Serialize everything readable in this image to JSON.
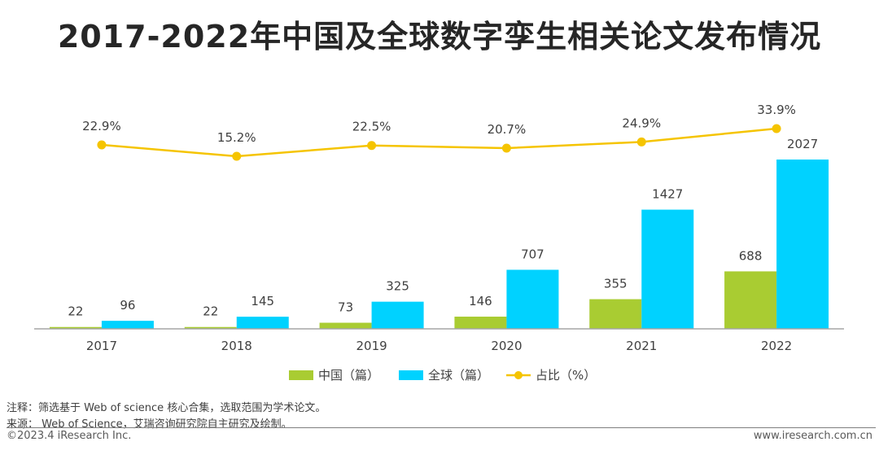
{
  "title": "2017-2022年中国及全球数字孪生相关论文发布情况",
  "chart_data": {
    "type": "bar",
    "categories": [
      "2017",
      "2018",
      "2019",
      "2020",
      "2021",
      "2022"
    ],
    "series": [
      {
        "name": "中国（篇）",
        "type": "bar",
        "values": [
          22,
          22,
          73,
          146,
          355,
          688
        ],
        "color": "#a9cc32"
      },
      {
        "name": "全球（篇）",
        "type": "bar",
        "values": [
          96,
          145,
          325,
          707,
          1427,
          2027
        ],
        "color": "#00d2ff"
      },
      {
        "name": "占比（%）",
        "type": "line",
        "values": [
          22.9,
          15.2,
          22.5,
          20.7,
          24.9,
          33.9
        ],
        "labels": [
          "22.9%",
          "15.2%",
          "22.5%",
          "20.7%",
          "24.9%",
          "33.9%"
        ],
        "color": "#f5c400"
      }
    ],
    "bar_ylim": [
      0,
      2027
    ],
    "line_ylim": [
      10,
      40
    ],
    "legend_position": "bottom",
    "grid": false
  },
  "notes": {
    "note": "注释：筛选基于 Web of science 核心合集，选取范围为学术论文。",
    "source": "来源：  Web of Science，艾瑞咨询研究院自主研究及绘制。"
  },
  "footer": {
    "copyright": "©2023.4 iResearch Inc.",
    "website": "www.iresearch.com.cn"
  }
}
